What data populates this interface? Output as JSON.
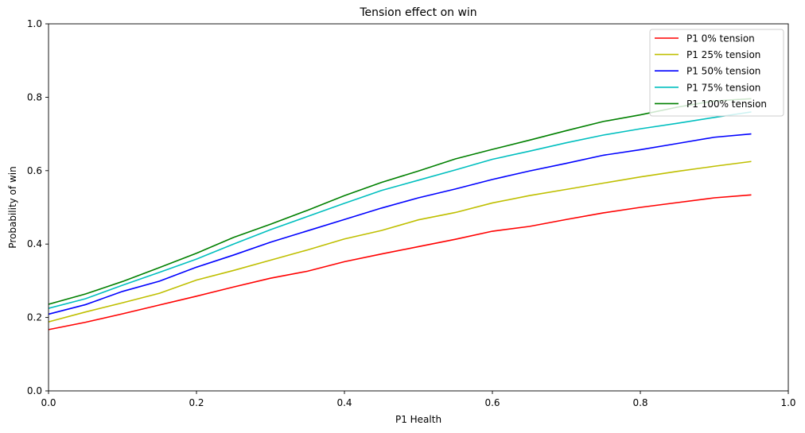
{
  "chart_data": {
    "type": "line",
    "title": "Tension effect on win",
    "xlabel": "P1 Health",
    "ylabel": "Probability of win",
    "xlim": [
      0,
      1
    ],
    "ylim": [
      0,
      1
    ],
    "xticks": [
      "0.0",
      "0.2",
      "0.4",
      "0.6",
      "0.8",
      "1.0"
    ],
    "yticks": [
      "0.0",
      "0.2",
      "0.4",
      "0.6",
      "0.8",
      "1.0"
    ],
    "grid": false,
    "legend_position": "top-right",
    "x": [
      0.0,
      0.05,
      0.1,
      0.15,
      0.2,
      0.25,
      0.3,
      0.35,
      0.4,
      0.45,
      0.5,
      0.55,
      0.6,
      0.65,
      0.7,
      0.75,
      0.8,
      0.85,
      0.9,
      0.95
    ],
    "series": [
      {
        "name": "P1 0% tension",
        "color": "#ff0000",
        "values": [
          0.167,
          0.187,
          0.21,
          0.234,
          0.258,
          0.283,
          0.307,
          0.326,
          0.352,
          0.373,
          0.393,
          0.413,
          0.435,
          0.448,
          0.467,
          0.485,
          0.5,
          0.513,
          0.526,
          0.534
        ]
      },
      {
        "name": "P1 25% tension",
        "color": "#bfbf00",
        "values": [
          0.188,
          0.215,
          0.24,
          0.266,
          0.302,
          0.328,
          0.356,
          0.384,
          0.414,
          0.437,
          0.466,
          0.486,
          0.512,
          0.532,
          0.549,
          0.566,
          0.583,
          0.598,
          0.612,
          0.625
        ]
      },
      {
        "name": "P1 50% tension",
        "color": "#0000ff",
        "values": [
          0.209,
          0.235,
          0.271,
          0.299,
          0.337,
          0.37,
          0.405,
          0.436,
          0.467,
          0.498,
          0.526,
          0.55,
          0.576,
          0.599,
          0.62,
          0.642,
          0.657,
          0.674,
          0.691,
          0.7
        ]
      },
      {
        "name": "P1 75% tension",
        "color": "#00bfbf",
        "values": [
          0.225,
          0.251,
          0.288,
          0.323,
          0.359,
          0.4,
          0.439,
          0.475,
          0.511,
          0.546,
          0.574,
          0.602,
          0.631,
          0.653,
          0.676,
          0.697,
          0.714,
          0.729,
          0.745,
          0.76
        ]
      },
      {
        "name": "P1 100% tension",
        "color": "#008000",
        "values": [
          0.236,
          0.264,
          0.298,
          0.336,
          0.375,
          0.418,
          0.454,
          0.492,
          0.532,
          0.568,
          0.599,
          0.632,
          0.658,
          0.683,
          0.709,
          0.734,
          0.752,
          0.773,
          0.79,
          0.796
        ]
      }
    ]
  }
}
